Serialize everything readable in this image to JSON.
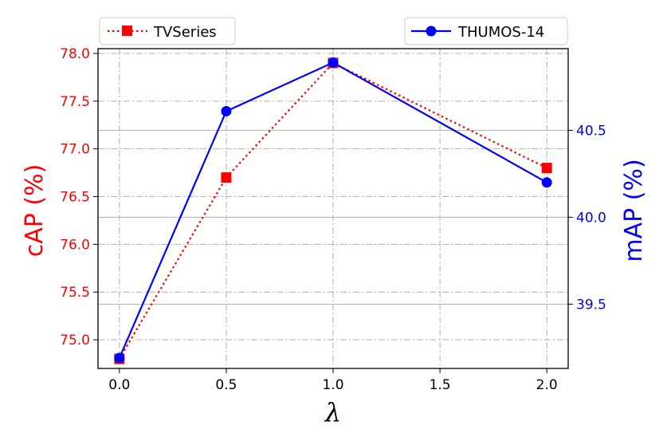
{
  "chart_data": {
    "type": "line",
    "xlabel": "λ",
    "x": [
      0.0,
      0.5,
      1.0,
      2.0
    ],
    "xlim": [
      -0.1,
      2.1
    ],
    "xticks": [
      "0.0",
      "0.5",
      "1.0",
      "1.5",
      "2.0"
    ],
    "xtick_values": [
      0.0,
      0.5,
      1.0,
      1.5,
      2.0
    ],
    "grid": true,
    "left_axis": {
      "label": "cAP (%)",
      "color": "#ff0000",
      "ylim": [
        74.7,
        78.05
      ],
      "ticks": [
        "75.0",
        "75.5",
        "76.0",
        "76.5",
        "77.0",
        "77.5",
        "78.0"
      ],
      "tick_values": [
        75.0,
        75.5,
        76.0,
        76.5,
        77.0,
        77.5,
        78.0
      ]
    },
    "right_axis": {
      "label": "mAP (%)",
      "color": "#0000ff",
      "ylim": [
        39.13,
        40.97
      ],
      "ticks": [
        "39.5",
        "40.0",
        "40.5"
      ],
      "tick_values": [
        39.5,
        40.0,
        40.5
      ]
    },
    "series": [
      {
        "name": "TVSeries",
        "axis": "left",
        "color": "#ff0000",
        "line_style": "dotted",
        "marker": "square",
        "values": [
          74.8,
          76.7,
          77.9,
          76.8
        ]
      },
      {
        "name": "THUMOS-14",
        "axis": "right",
        "color": "#0000ff",
        "line_style": "solid",
        "marker": "circle",
        "values": [
          39.19,
          40.61,
          40.89,
          40.2
        ]
      }
    ],
    "legends": [
      {
        "series": "TVSeries",
        "placement": "top-left"
      },
      {
        "series": "THUMOS-14",
        "placement": "top-right"
      }
    ]
  }
}
